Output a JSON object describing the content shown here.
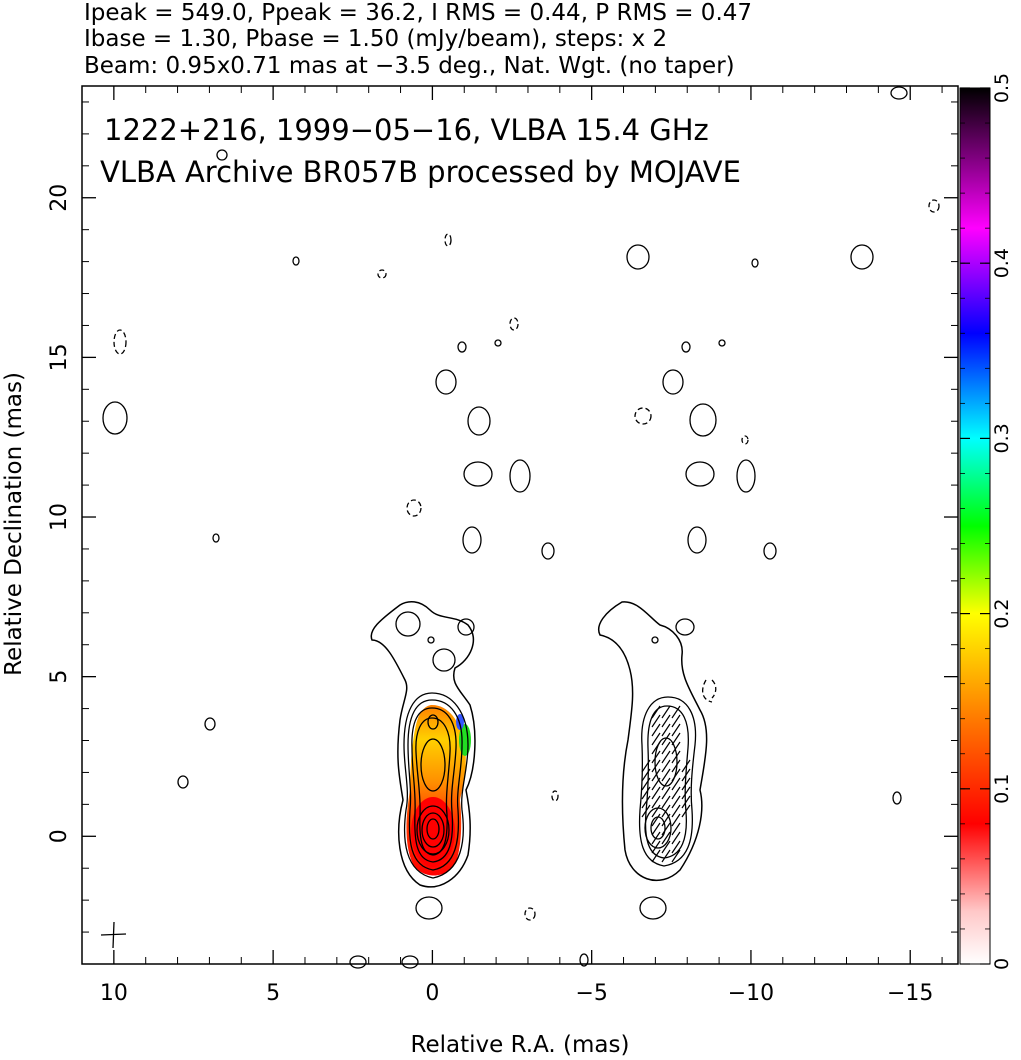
{
  "header": {
    "line1": "Ipeak = 549.0, Ppeak = 36.2, I RMS = 0.44, P RMS = 0.47",
    "line2": "Ibase = 1.30, Pbase = 1.50 (mJy/beam), steps: x 2",
    "line3": "Beam: 0.95x0.71 mas at −3.5 deg., Nat. Wgt. (no taper)"
  },
  "chart_data": {
    "type": "contour",
    "title": "1222+216, 1999−05−16, VLBA 15.4 GHz",
    "subtitle": "VLBA Archive BR057B processed by MOJAVE",
    "xlabel": "Relative R.A. (mas)",
    "ylabel": "Relative Declination (mas)",
    "xlim": [
      11,
      -16.5
    ],
    "ylim": [
      -4,
      23.5
    ],
    "x_ticks": [
      10,
      5,
      0,
      -5,
      -10,
      -15
    ],
    "x_tick_labels": [
      "10",
      "5",
      "0",
      "−5",
      "−10",
      "−15"
    ],
    "y_ticks": [
      0,
      5,
      10,
      15,
      20
    ],
    "y_tick_labels": [
      "0",
      "5",
      "10",
      "15",
      "20"
    ],
    "colorbar": {
      "min": 0,
      "max": 0.5,
      "ticks": [
        0,
        0.1,
        0.2,
        0.3,
        0.4,
        0.5
      ],
      "tick_labels": [
        "0",
        "0.1",
        "0.2",
        "0.3",
        "0.4",
        "0.5"
      ],
      "colors": [
        "#ffffff",
        "#ff0000",
        "#ff8800",
        "#ffff00",
        "#00ff00",
        "#00ffff",
        "#0000ff",
        "#ff00ff",
        "#000000"
      ]
    },
    "jet_total_intensity": {
      "center_ra": 0,
      "components": [
        {
          "ra": 0.0,
          "dec": 0.0
        },
        {
          "ra": 0.0,
          "dec": 2.0
        },
        {
          "ra": 0.0,
          "dec": 3.4
        }
      ]
    },
    "jet_polarization": {
      "center_ra": -7.2,
      "components": [
        {
          "ra": -7.2,
          "dec": 0.0
        },
        {
          "ra": -7.2,
          "dec": 2.1
        }
      ]
    },
    "beam_marker": {
      "ra": 9.9,
      "dec": -3.3,
      "label": "+"
    }
  }
}
